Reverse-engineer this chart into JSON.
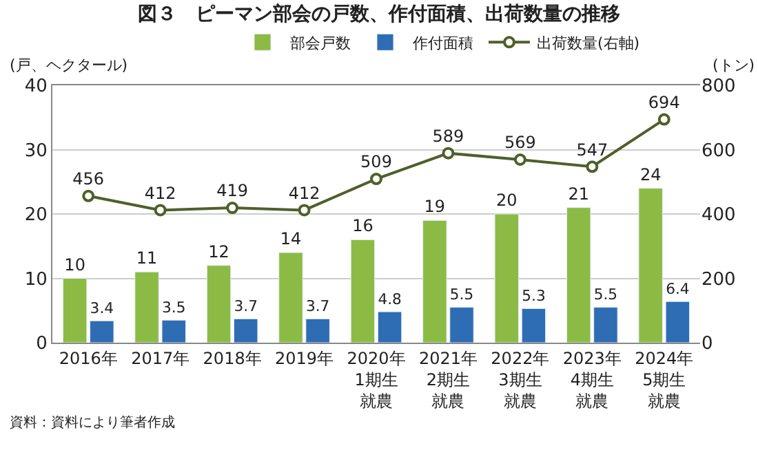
{
  "chart_data": {
    "type": "bar",
    "title": "図３　ピーマン部会の戸数、作付面積、出荷数量の推移",
    "ylabel": "(戸、ヘクタール)",
    "y2label": "(トン)",
    "categories": [
      "2016年",
      "2017年",
      "2018年",
      "2019年",
      "2020年1期生就農",
      "2021年2期生就農",
      "2022年3期生就農",
      "2023年4期生就農",
      "2024年5期生就農"
    ],
    "series": [
      {
        "name": "部会戸数",
        "color": "#8cbb45",
        "values": [
          10,
          11,
          12,
          14,
          16,
          19,
          20,
          21,
          24
        ]
      },
      {
        "name": "作付面積",
        "color": "#2e6db4",
        "values": [
          3.4,
          3.5,
          3.7,
          3.7,
          4.8,
          5.5,
          5.3,
          5.5,
          6.4
        ]
      },
      {
        "name": "出荷数量(右軸)",
        "type": "line",
        "axis": "y2",
        "color": "#4f5f2a",
        "marker": "circle",
        "values": [
          456,
          412,
          419,
          412,
          509,
          589,
          569,
          547,
          694
        ]
      }
    ],
    "ylim": [
      0,
      40
    ],
    "yticks": [
      0,
      10,
      20,
      30,
      40
    ],
    "y2lim": [
      0,
      800
    ],
    "y2ticks": [
      0,
      200,
      400,
      600,
      800
    ],
    "grid": "y",
    "legend": "top",
    "data_labels": true,
    "annotations": [
      "資料：資料により筆者作成"
    ]
  }
}
